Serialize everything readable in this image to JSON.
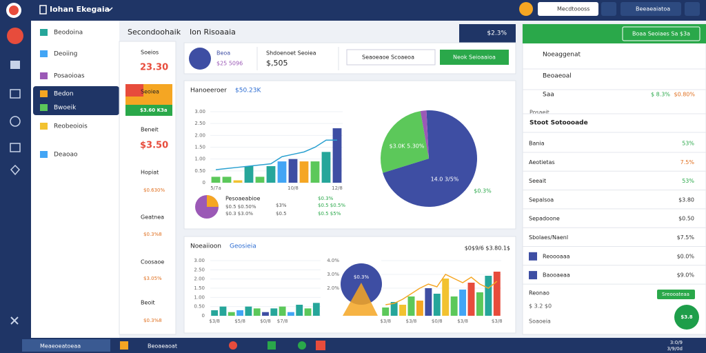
{
  "topbar": {
    "title": "Iohan Ekegaia",
    "search": "Mecdtoooss",
    "account": "Beeaeaiatoa"
  },
  "nav": [
    "Beodoina",
    "Deoiing",
    "Posaoioas",
    "Bedon",
    "Bwoeik",
    "Reobeoiois",
    "Deaoao"
  ],
  "tiles": [
    {
      "label": "Soeios",
      "value": "23.30"
    },
    {
      "label": "Seoiea",
      "value": "$3.60 K3a"
    },
    {
      "label": "Beneit",
      "value": "$3.50"
    },
    {
      "label": "Hopiat",
      "value": "$0.630%"
    },
    {
      "label": "Geatnea",
      "value": "$0.3%8"
    },
    {
      "label": "Coosaoe",
      "value": "$3.05%"
    },
    {
      "label": "Beoit",
      "value": "$0.3%8"
    }
  ],
  "header": {
    "title": "Secondoohaik",
    "subtitle": "Ion Risoaaia",
    "badge": "$2.3%"
  },
  "summary": {
    "name": "Beoa",
    "amount": "$25 5096",
    "label": "Shdoenoet Seoiea",
    "value": "$,505",
    "dropdown": "Seaoeaoe Scoaeoa",
    "button": "Neok Seioaaioa"
  },
  "overview": {
    "title": "Hanoeeroer",
    "value": "$50.23K",
    "legend_title": "Pesoaeabioe",
    "legend": [
      "$0.5 $0.50%",
      "$0.3 $3.0%",
      "$3%",
      "$0.5",
      "$0.3%",
      "$0.5 $0.5%",
      "$0.5 $5%"
    ]
  },
  "bar1": {
    "type": "bar",
    "categories": [
      "5/7a",
      null,
      null,
      null,
      null,
      null,
      null,
      "10/8",
      null,
      null,
      null,
      "12/8"
    ],
    "values": [
      0.25,
      0.25,
      0.1,
      0.7,
      0.25,
      0.7,
      0.9,
      1.0,
      0.9,
      0.9,
      1.3,
      2.3
    ],
    "colors": [
      "#5cc85a",
      "#5cc85a",
      "#f2c230",
      "#26a69a",
      "#5cc85a",
      "#26a69a",
      "#42a5f5",
      "#3e4ea3",
      "#f5a623",
      "#5cc85a",
      "#26a69a",
      "#3e4ea3"
    ],
    "line": [
      0.55,
      0.6,
      0.65,
      0.7,
      0.75,
      0.8,
      1.1,
      1.2,
      1.3,
      1.5,
      1.8,
      1.8
    ],
    "line_color": "#29a0d0",
    "ylim": [
      0,
      3
    ],
    "yticks": [
      0,
      {
        "value": 0.5,
        "label": "0.50"
      },
      {
        "value": 1,
        "label": "1.00"
      },
      {
        "value": 1.5,
        "label": "1.50"
      },
      {
        "value": 2,
        "label": "2.00"
      },
      {
        "value": 2.5,
        "label": "2.50"
      },
      {
        "value": 3,
        "label": "3.00"
      }
    ]
  },
  "pie1": {
    "type": "pie",
    "values": [
      71,
      27,
      2
    ],
    "colors": [
      "#3e4ea3",
      "#5cc85a",
      "#9b59b6"
    ],
    "labels": [
      "14.0 3/5%",
      "$3.0K 5.30%",
      "$0.3%"
    ]
  },
  "bottom": {
    "title": "Noeaiioon",
    "subtitle": "Geosieia",
    "range": "$0$9/6 $3.80.1$",
    "bubble": "$0.3%"
  },
  "bar2": {
    "type": "bar",
    "categories": [
      "$3/8",
      null,
      null,
      "$5/8",
      null,
      null,
      "$0/8",
      null,
      "$7/8",
      null,
      null,
      null,
      null
    ],
    "values": [
      0.3,
      0.5,
      0.2,
      0.3,
      0.5,
      0.4,
      0.2,
      0.4,
      0.5,
      0.2,
      0.6,
      0.4,
      0.7
    ],
    "colors": [
      "#26a69a",
      "#26a69a",
      "#5cc85a",
      "#42a5f5",
      "#26a69a",
      "#5cc85a",
      "#3e4ea3",
      "#26a69a",
      "#5cc85a",
      "#42a5f5",
      "#26a69a",
      "#5cc85a",
      "#26a69a"
    ],
    "ylim": [
      0,
      3
    ],
    "yticks": [
      0,
      {
        "value": 0.5,
        "label": "0.50"
      },
      {
        "value": 1,
        "label": "1.00"
      },
      {
        "value": 1.5,
        "label": "1.50"
      },
      {
        "value": 2,
        "label": "2.00"
      },
      {
        "value": 2.5,
        "label": "2.50"
      },
      {
        "value": 3,
        "label": "3.00"
      }
    ]
  },
  "bar3": {
    "type": "bar",
    "categories": [
      "$3/8",
      null,
      null,
      "$3/8",
      null,
      null,
      "$0/8",
      null,
      null,
      "$3/8",
      null,
      null,
      null,
      "$3/8"
    ],
    "values": [
      0.6,
      1.0,
      0.8,
      1.4,
      1.1,
      2.0,
      1.6,
      2.7,
      1.4,
      1.9,
      2.4,
      1.7,
      2.9,
      3.2
    ],
    "colors": [
      "#5cc85a",
      "#26a69a",
      "#f2c230",
      "#5cc85a",
      "#f5a623",
      "#3e4ea3",
      "#26a69a",
      "#f2c230",
      "#5cc85a",
      "#42a5f5",
      "#e74c3c",
      "#5cc85a",
      "#26a69a",
      "#e74c3c"
    ],
    "line": [
      0.8,
      0.9,
      1.2,
      1.6,
      2.0,
      2.3,
      2.1,
      3.0,
      2.7,
      2.4,
      2.8,
      2.3,
      2.0,
      2.5
    ],
    "line_color": "#f5a623",
    "ylim": [
      0,
      4
    ],
    "yticks": [
      {
        "value": 2,
        "label": "2.0%"
      },
      {
        "value": 3,
        "label": "3.0%"
      },
      {
        "value": 4,
        "label": "4.0%"
      }
    ]
  },
  "right": {
    "button": "Boaa Seoiaes Sa $3a",
    "section1": "Noeaggenat",
    "section2": "Beoaeoal",
    "item": {
      "label": "Saa",
      "value": "$ 8.3%",
      "value2": "$0.80%"
    },
    "group_label": "Posaeit",
    "group_title": "Stoot Sotoooade",
    "rows": [
      {
        "label": "Bania",
        "value": "53%",
        "color": "#2aa84a"
      },
      {
        "label": "Aeotietas",
        "value": "7.5%",
        "color": "#e07020"
      },
      {
        "label": "Seeait",
        "value": "53%",
        "color": "#2aa84a"
      },
      {
        "label": "Sepalsoa",
        "value": "$3.80",
        "color": "#333333"
      },
      {
        "label": "Sepadoone",
        "value": "$0.50",
        "color": "#333333"
      },
      {
        "label": "Sbolaes/Naenl",
        "value": "$7.5%",
        "color": "#333333"
      },
      {
        "label": "Reoooaaa",
        "value": "$0.0%",
        "color": "#333333"
      },
      {
        "label": "Baooaeaa",
        "value": "$9.0%",
        "color": "#333333"
      }
    ],
    "footer_label": "Reonao",
    "footer_button": "Sreooateaa",
    "footer_lines": [
      "$ 3.2 $0",
      "Soaoeia"
    ],
    "fab": "$3.8"
  },
  "taskbar": {
    "app": "Meaeoeatoeaa",
    "app2": "Beoaeaoat",
    "clock": [
      "3:0/9",
      "3/9/0d"
    ]
  }
}
